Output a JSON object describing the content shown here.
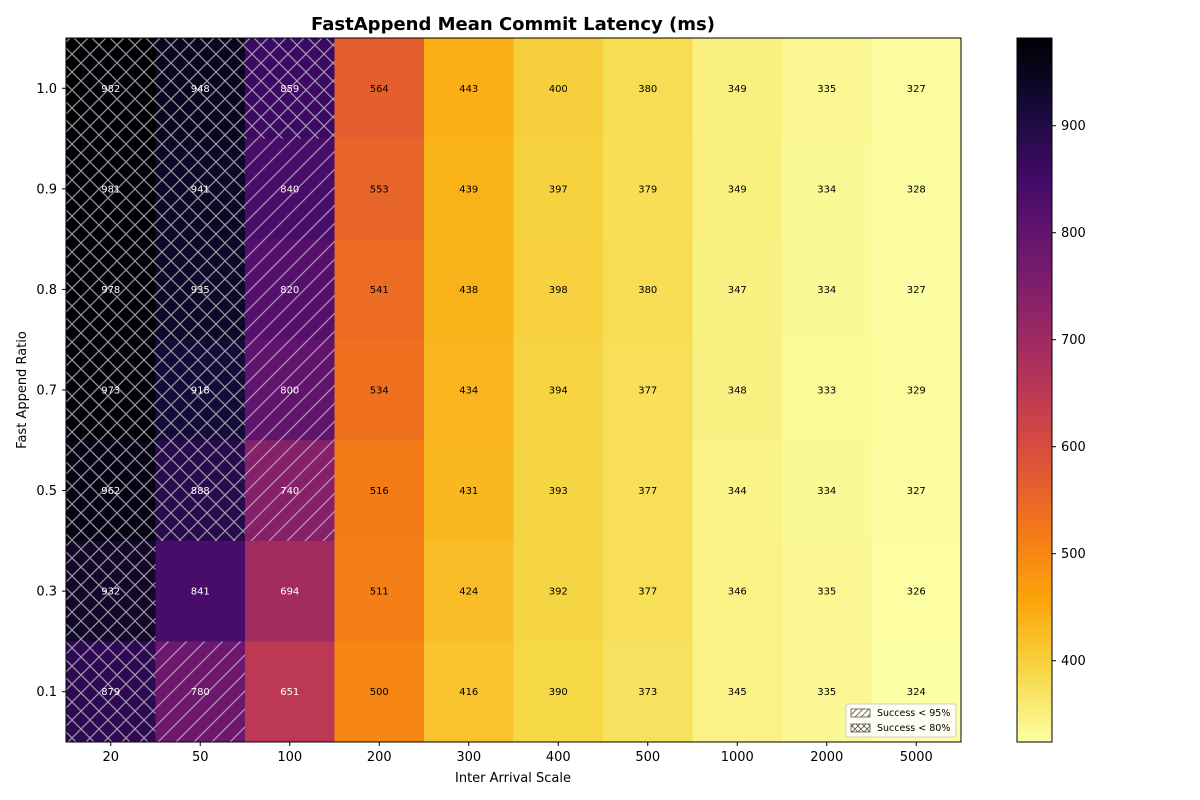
{
  "chart_data": {
    "type": "heatmap",
    "title": "FastAppend Mean Commit Latency (ms)",
    "xlabel": "Inter Arrival Scale",
    "ylabel": "Fast Append Ratio",
    "x_categories": [
      "20",
      "50",
      "100",
      "200",
      "300",
      "400",
      "500",
      "1000",
      "2000",
      "5000"
    ],
    "y_categories": [
      "1.0",
      "0.9",
      "0.8",
      "0.7",
      "0.5",
      "0.3",
      "0.1"
    ],
    "values": [
      [
        982,
        948,
        859,
        564,
        443,
        400,
        380,
        349,
        335,
        327
      ],
      [
        981,
        941,
        840,
        553,
        439,
        397,
        379,
        349,
        334,
        328
      ],
      [
        978,
        935,
        820,
        541,
        438,
        398,
        380,
        347,
        334,
        327
      ],
      [
        973,
        918,
        800,
        534,
        434,
        394,
        377,
        348,
        333,
        329
      ],
      [
        962,
        888,
        740,
        516,
        431,
        393,
        377,
        344,
        334,
        327
      ],
      [
        932,
        841,
        694,
        511,
        424,
        392,
        377,
        346,
        335,
        326
      ],
      [
        879,
        780,
        651,
        500,
        416,
        390,
        373,
        345,
        335,
        324
      ]
    ],
    "hatch": [
      [
        "cross",
        "cross",
        "cross",
        "none",
        "none",
        "none",
        "none",
        "none",
        "none",
        "none"
      ],
      [
        "cross",
        "cross",
        "diag",
        "none",
        "none",
        "none",
        "none",
        "none",
        "none",
        "none"
      ],
      [
        "cross",
        "cross",
        "diag",
        "none",
        "none",
        "none",
        "none",
        "none",
        "none",
        "none"
      ],
      [
        "cross",
        "cross",
        "diag",
        "none",
        "none",
        "none",
        "none",
        "none",
        "none",
        "none"
      ],
      [
        "cross",
        "cross",
        "diag",
        "none",
        "none",
        "none",
        "none",
        "none",
        "none",
        "none"
      ],
      [
        "cross",
        "none",
        "none",
        "none",
        "none",
        "none",
        "none",
        "none",
        "none",
        "none"
      ],
      [
        "cross",
        "diag",
        "none",
        "none",
        "none",
        "none",
        "none",
        "none",
        "none",
        "none"
      ]
    ],
    "colormap": "inferno",
    "colorbar": {
      "min": 324,
      "max": 982,
      "ticks": [
        400,
        500,
        600,
        700,
        800,
        900
      ]
    },
    "legend": {
      "position": "lower-right",
      "entries": [
        {
          "label": "Success < 95%",
          "hatch": "diag"
        },
        {
          "label": "Success < 80%",
          "hatch": "cross"
        }
      ]
    }
  }
}
